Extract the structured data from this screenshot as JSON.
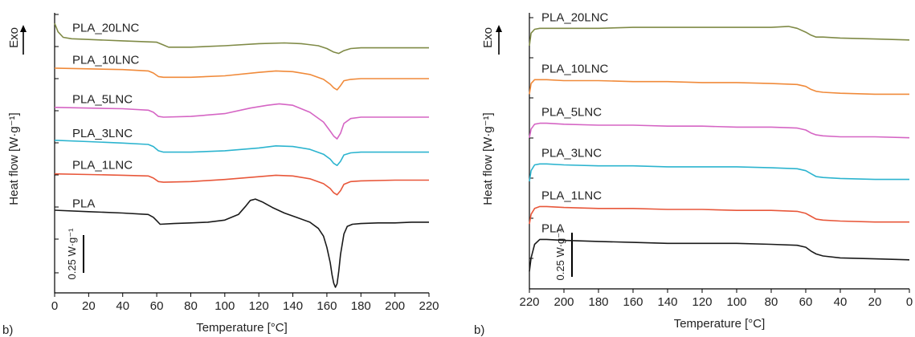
{
  "chart_data": [
    {
      "type": "line",
      "panel_label": "b)",
      "xlabel": "Temperature [°C]",
      "ylabel": "Heat flow [W·g⁻¹]",
      "exo_label": "Exo",
      "scale_bar_label": "0.25 W·g⁻¹",
      "xlim": [
        0,
        220
      ],
      "x_reversed": false,
      "xticks": [
        0,
        20,
        40,
        60,
        80,
        100,
        120,
        140,
        160,
        180,
        200,
        220
      ],
      "xtick_labels": [
        "0",
        "20",
        "40",
        "60",
        "80",
        "100",
        "120",
        "140",
        "160",
        "180",
        "200",
        "220"
      ],
      "series": [
        {
          "name": "PLA",
          "color": "#1a1a1a",
          "x": [
            0,
            20,
            40,
            55,
            58,
            60,
            62,
            70,
            80,
            90,
            100,
            108,
            112,
            115,
            118,
            122,
            128,
            135,
            142,
            150,
            155,
            158,
            160,
            162,
            163,
            164,
            165,
            166,
            167,
            168,
            170,
            172,
            175,
            180,
            190,
            200,
            210,
            220
          ],
          "y": [
            -1.07,
            -1.09,
            -1.11,
            -1.13,
            -1.17,
            -1.22,
            -1.27,
            -1.26,
            -1.25,
            -1.24,
            -1.21,
            -1.13,
            -1.02,
            -0.93,
            -0.91,
            -0.95,
            -1.03,
            -1.11,
            -1.17,
            -1.24,
            -1.33,
            -1.44,
            -1.6,
            -1.82,
            -1.99,
            -2.11,
            -2.17,
            -2.12,
            -1.94,
            -1.7,
            -1.41,
            -1.3,
            -1.27,
            -1.26,
            -1.25,
            -1.25,
            -1.24,
            -1.24
          ]
        },
        {
          "name": "PLA_1LNC",
          "color": "#e8573a",
          "x": [
            0,
            20,
            40,
            55,
            58,
            61,
            64,
            80,
            100,
            120,
            130,
            140,
            150,
            158,
            162,
            164,
            166,
            168,
            170,
            174,
            180,
            200,
            220
          ],
          "y": [
            -0.55,
            -0.56,
            -0.57,
            -0.58,
            -0.61,
            -0.66,
            -0.67,
            -0.66,
            -0.63,
            -0.59,
            -0.57,
            -0.58,
            -0.62,
            -0.69,
            -0.76,
            -0.82,
            -0.85,
            -0.79,
            -0.7,
            -0.66,
            -0.65,
            -0.64,
            -0.64
          ]
        },
        {
          "name": "PLA_3LNC",
          "color": "#2cb4cf",
          "x": [
            0,
            20,
            40,
            55,
            58,
            61,
            64,
            80,
            100,
            120,
            130,
            140,
            150,
            158,
            162,
            164,
            166,
            168,
            170,
            174,
            180,
            200,
            220
          ],
          "y": [
            -0.07,
            -0.09,
            -0.11,
            -0.13,
            -0.16,
            -0.22,
            -0.24,
            -0.24,
            -0.22,
            -0.18,
            -0.15,
            -0.16,
            -0.2,
            -0.27,
            -0.34,
            -0.4,
            -0.43,
            -0.37,
            -0.28,
            -0.25,
            -0.24,
            -0.24,
            -0.24
          ]
        },
        {
          "name": "PLA_5LNC",
          "color": "#d565c4",
          "x": [
            0,
            20,
            40,
            55,
            58,
            61,
            64,
            80,
            100,
            115,
            125,
            132,
            140,
            150,
            158,
            162,
            164,
            166,
            168,
            170,
            174,
            180,
            200,
            220
          ],
          "y": [
            0.4,
            0.39,
            0.38,
            0.36,
            0.33,
            0.27,
            0.26,
            0.27,
            0.31,
            0.39,
            0.43,
            0.45,
            0.43,
            0.33,
            0.19,
            0.06,
            -0.01,
            -0.05,
            0.03,
            0.17,
            0.24,
            0.26,
            0.26,
            0.26
          ]
        },
        {
          "name": "PLA_10LNC",
          "color": "#f08a3a",
          "x": [
            0,
            20,
            40,
            55,
            58,
            61,
            64,
            80,
            100,
            120,
            130,
            140,
            150,
            158,
            162,
            164,
            166,
            168,
            170,
            174,
            180,
            200,
            220
          ],
          "y": [
            0.96,
            0.95,
            0.94,
            0.92,
            0.89,
            0.84,
            0.83,
            0.83,
            0.85,
            0.9,
            0.92,
            0.91,
            0.87,
            0.8,
            0.73,
            0.68,
            0.65,
            0.71,
            0.78,
            0.8,
            0.81,
            0.81,
            0.81
          ]
        },
        {
          "name": "PLA_20LNC",
          "color": "#7f8a46",
          "x": [
            0,
            2,
            5,
            10,
            20,
            40,
            60,
            64,
            67,
            80,
            100,
            120,
            135,
            145,
            155,
            160,
            164,
            167,
            170,
            174,
            180,
            200,
            220
          ],
          "y": [
            1.6,
            1.48,
            1.4,
            1.38,
            1.37,
            1.35,
            1.33,
            1.29,
            1.26,
            1.26,
            1.28,
            1.31,
            1.32,
            1.31,
            1.28,
            1.24,
            1.19,
            1.17,
            1.21,
            1.24,
            1.25,
            1.25,
            1.25
          ]
        }
      ]
    },
    {
      "type": "line",
      "panel_label": "b)",
      "xlabel": "Temperature [°C]",
      "ylabel": "Heat flow [W·g⁻¹]",
      "exo_label": "Exo",
      "scale_bar_label": "0.25 W·g⁻¹",
      "xlim": [
        220,
        0
      ],
      "x_reversed": true,
      "xticks": [
        220,
        200,
        180,
        160,
        140,
        120,
        100,
        80,
        60,
        40,
        20,
        0
      ],
      "xtick_labels": [
        "220",
        "200",
        "180",
        "160",
        "140",
        "120",
        "100",
        "80",
        "60",
        "40",
        "20",
        "0"
      ],
      "series": [
        {
          "name": "PLA",
          "color": "#1a1a1a",
          "x": [
            220,
            219,
            217,
            214,
            210,
            200,
            180,
            160,
            140,
            120,
            100,
            80,
            65,
            60,
            57,
            54,
            50,
            40,
            20,
            0
          ],
          "y": [
            -1.12,
            -0.98,
            -0.84,
            -0.79,
            -0.79,
            -0.8,
            -0.81,
            -0.82,
            -0.83,
            -0.83,
            -0.83,
            -0.84,
            -0.85,
            -0.87,
            -0.91,
            -0.94,
            -0.96,
            -0.98,
            -0.99,
            -1.0
          ]
        },
        {
          "name": "PLA_1LNC",
          "color": "#e8573a",
          "x": [
            220,
            219,
            217,
            214,
            210,
            200,
            180,
            160,
            140,
            120,
            100,
            80,
            65,
            60,
            57,
            54,
            50,
            40,
            20,
            0
          ],
          "y": [
            -0.63,
            -0.53,
            -0.47,
            -0.45,
            -0.45,
            -0.46,
            -0.47,
            -0.47,
            -0.48,
            -0.48,
            -0.49,
            -0.49,
            -0.5,
            -0.52,
            -0.55,
            -0.58,
            -0.59,
            -0.6,
            -0.61,
            -0.61
          ]
        },
        {
          "name": "PLA_3LNC",
          "color": "#2cb4cf",
          "x": [
            220,
            219,
            217,
            214,
            210,
            200,
            180,
            160,
            140,
            120,
            100,
            80,
            65,
            60,
            57,
            54,
            50,
            40,
            20,
            0
          ],
          "y": [
            -0.19,
            -0.08,
            -0.02,
            -0.01,
            -0.01,
            -0.02,
            -0.03,
            -0.03,
            -0.04,
            -0.04,
            -0.04,
            -0.05,
            -0.06,
            -0.08,
            -0.11,
            -0.14,
            -0.15,
            -0.16,
            -0.17,
            -0.17
          ]
        },
        {
          "name": "PLA_5LNC",
          "color": "#d565c4",
          "x": [
            220,
            219,
            217,
            214,
            210,
            200,
            180,
            160,
            140,
            120,
            100,
            80,
            65,
            60,
            57,
            54,
            50,
            40,
            20,
            0
          ],
          "y": [
            0.26,
            0.35,
            0.4,
            0.41,
            0.41,
            0.4,
            0.39,
            0.39,
            0.38,
            0.38,
            0.37,
            0.37,
            0.36,
            0.34,
            0.31,
            0.29,
            0.28,
            0.27,
            0.27,
            0.26
          ]
        },
        {
          "name": "PLA_10LNC",
          "color": "#f08a3a",
          "x": [
            220,
            219,
            217,
            214,
            210,
            200,
            180,
            160,
            140,
            120,
            100,
            80,
            65,
            60,
            57,
            54,
            50,
            40,
            20,
            0
          ],
          "y": [
            0.71,
            0.82,
            0.86,
            0.86,
            0.86,
            0.85,
            0.85,
            0.84,
            0.84,
            0.83,
            0.83,
            0.82,
            0.81,
            0.79,
            0.76,
            0.74,
            0.73,
            0.72,
            0.71,
            0.71
          ]
        },
        {
          "name": "PLA_20LNC",
          "color": "#7f8a46",
          "x": [
            220,
            219,
            217,
            214,
            210,
            200,
            180,
            160,
            140,
            120,
            100,
            80,
            70,
            65,
            60,
            57,
            54,
            50,
            40,
            20,
            0
          ],
          "y": [
            1.21,
            1.34,
            1.38,
            1.39,
            1.39,
            1.39,
            1.39,
            1.4,
            1.4,
            1.4,
            1.4,
            1.4,
            1.41,
            1.39,
            1.35,
            1.32,
            1.3,
            1.3,
            1.29,
            1.28,
            1.27
          ]
        }
      ]
    }
  ]
}
